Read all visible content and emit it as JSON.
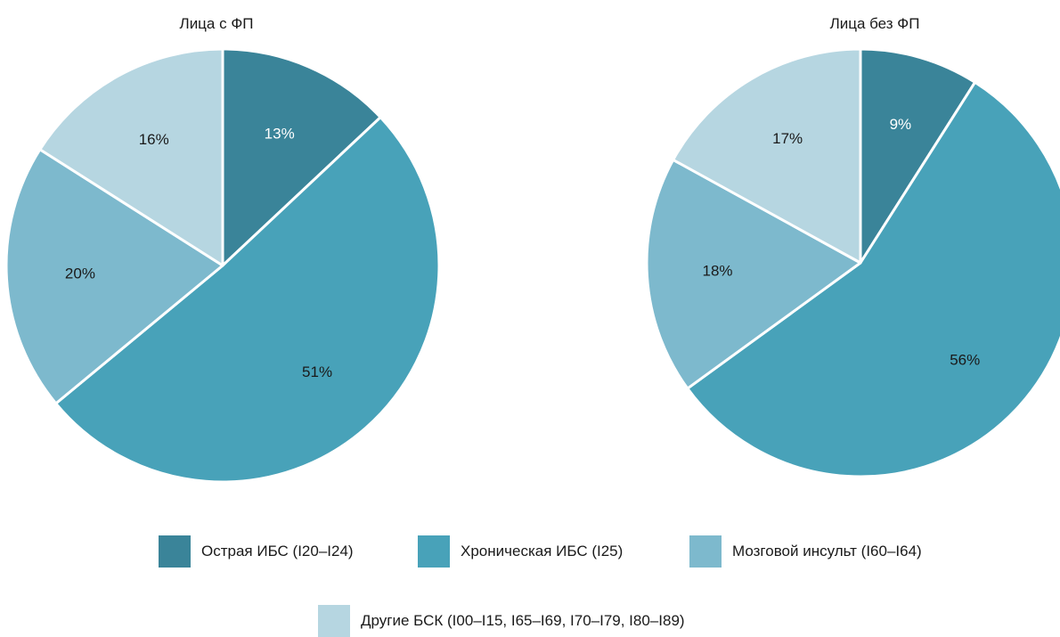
{
  "chart_data": [
    {
      "type": "pie",
      "title": "Лица с ФП",
      "slices": [
        {
          "category": "Острая ИБС (I20–I24)",
          "value": 13,
          "label": "13%"
        },
        {
          "category": "Хроническая ИБС (I25)",
          "value": 51,
          "label": "51%"
        },
        {
          "category": "Мозговой инсульт (I60–I64)",
          "value": 20,
          "label": "20%"
        },
        {
          "category": "Другие БСК (I00–I15, I65–I69, I70–I79, I80–I89)",
          "value": 16,
          "label": "16%"
        }
      ]
    },
    {
      "type": "pie",
      "title": "Лица без ФП",
      "slices": [
        {
          "category": "Острая ИБС (I20–I24)",
          "value": 9,
          "label": "9%"
        },
        {
          "category": "Хроническая ИБС (I25)",
          "value": 56,
          "label": "56%"
        },
        {
          "category": "Мозговой инсульт (I60–I64)",
          "value": 18,
          "label": "18%"
        },
        {
          "category": "Другие БСК (I00–I15, I65–I69, I70–I79, I80–I89)",
          "value": 17,
          "label": "17%"
        }
      ]
    }
  ],
  "legend": {
    "placement": "bottom",
    "items": [
      {
        "label": "Острая ИБС (I20–I24)",
        "color": "#3a8499"
      },
      {
        "label": "Хроническая ИБС (I25)",
        "color": "#48a2b9"
      },
      {
        "label": "Мозговой инсульт (I60–I64)",
        "color": "#7db9cd"
      },
      {
        "label": "Другие БСК (I00–I15, I65–I69, I70–I79, I80–I89)",
        "color": "#b6d6e1"
      }
    ]
  },
  "label_colors": [
    "#ffffff",
    "#1a1a1a",
    "#1a1a1a",
    "#1a1a1a"
  ]
}
